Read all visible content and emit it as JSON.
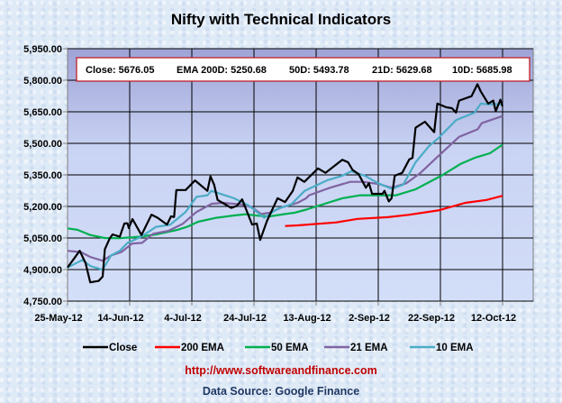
{
  "chart_data": {
    "type": "line",
    "title": "Nifty with Technical Indicators",
    "xlabel": "",
    "ylabel": "",
    "x_units": "calendar days since 25-May-12",
    "xlim": [
      0,
      150
    ],
    "ylim": [
      4750,
      5950
    ],
    "grid": true,
    "legend_position": "bottom",
    "x_tick_labels": [
      "25-May-12",
      "14-Jun-12",
      "4-Jul-12",
      "24-Jul-12",
      "13-Aug-12",
      "2-Sep-12",
      "22-Sep-12",
      "12-Oct-12"
    ],
    "x_tick_days": [
      0,
      20,
      40,
      60,
      80,
      100,
      120,
      140
    ],
    "y_ticks": [
      4750,
      4900,
      5050,
      5200,
      5350,
      5500,
      5650,
      5800,
      5950
    ],
    "y_tick_labels": [
      "4,750.00",
      "4,900.00",
      "5,050.00",
      "5,200.00",
      "5,350.00",
      "5,500.00",
      "5,650.00",
      "5,800.00",
      "5,950.00"
    ],
    "series": [
      {
        "name": "Close",
        "color": "#000000",
        "points": [
          [
            0,
            4910
          ],
          [
            3.9,
            4989
          ],
          [
            5.8,
            4931
          ],
          [
            7.3,
            4839
          ],
          [
            10,
            4846
          ],
          [
            11.3,
            4867
          ],
          [
            12,
            4996
          ],
          [
            13.5,
            5046
          ],
          [
            14.5,
            5067
          ],
          [
            16.8,
            5056
          ],
          [
            18.3,
            5119
          ],
          [
            19.3,
            5120
          ],
          [
            19.7,
            5097
          ],
          [
            20.9,
            5140
          ],
          [
            23.8,
            5064
          ],
          [
            27,
            5161
          ],
          [
            29,
            5146
          ],
          [
            32,
            5114
          ],
          [
            33.3,
            5153
          ],
          [
            34.3,
            5150
          ],
          [
            35,
            5278
          ],
          [
            38,
            5278
          ],
          [
            41,
            5324
          ],
          [
            45,
            5274
          ],
          [
            46,
            5343
          ],
          [
            47.2,
            5303
          ],
          [
            48.3,
            5231
          ],
          [
            52.7,
            5193
          ],
          [
            54.5,
            5203
          ],
          [
            56.2,
            5234
          ],
          [
            59.4,
            5114
          ],
          [
            60.9,
            5119
          ],
          [
            62,
            5041
          ],
          [
            64.2,
            5132
          ],
          [
            67.6,
            5239
          ],
          [
            70,
            5221
          ],
          [
            72.5,
            5274
          ],
          [
            74,
            5338
          ],
          [
            75.8,
            5321
          ],
          [
            76.2,
            5317
          ],
          [
            80.6,
            5381
          ],
          [
            83,
            5360
          ],
          [
            88.4,
            5422
          ],
          [
            90.3,
            5410
          ],
          [
            91.7,
            5374
          ],
          [
            93.7,
            5353
          ],
          [
            96,
            5289
          ],
          [
            97,
            5310
          ],
          [
            98,
            5260
          ],
          [
            101.4,
            5260
          ],
          [
            102,
            5274
          ],
          [
            103.4,
            5224
          ],
          [
            104.3,
            5239
          ],
          [
            105.3,
            5346
          ],
          [
            107.7,
            5360
          ],
          [
            110,
            5424
          ],
          [
            111,
            5431
          ],
          [
            112,
            5574
          ],
          [
            115,
            5603
          ],
          [
            118,
            5553
          ],
          [
            119,
            5689
          ],
          [
            122,
            5671
          ],
          [
            123.7,
            5667
          ],
          [
            125,
            5646
          ],
          [
            126,
            5703
          ],
          [
            130,
            5724
          ],
          [
            131.9,
            5781
          ],
          [
            133,
            5746
          ],
          [
            135.4,
            5689
          ],
          [
            137,
            5703
          ],
          [
            137.8,
            5653
          ],
          [
            139.3,
            5707
          ],
          [
            140,
            5676.05
          ]
        ]
      },
      {
        "name": "200 EMA",
        "color": "#ff0000",
        "points": [
          [
            70,
            5107
          ],
          [
            74,
            5110
          ],
          [
            86.5,
            5124
          ],
          [
            93.3,
            5141
          ],
          [
            103,
            5149
          ],
          [
            109.7,
            5160
          ],
          [
            119.3,
            5181
          ],
          [
            128,
            5217
          ],
          [
            134.8,
            5231
          ],
          [
            140,
            5250.68
          ]
        ]
      },
      {
        "name": "50 EMA",
        "color": "#00b050",
        "points": [
          [
            0,
            5096
          ],
          [
            3.2,
            5089
          ],
          [
            7.3,
            5064
          ],
          [
            12,
            5050
          ],
          [
            16.8,
            5049
          ],
          [
            23,
            5056
          ],
          [
            28.5,
            5067
          ],
          [
            35.4,
            5089
          ],
          [
            38.5,
            5103
          ],
          [
            42,
            5127
          ],
          [
            47.8,
            5146
          ],
          [
            53.6,
            5157
          ],
          [
            57.4,
            5163
          ],
          [
            61.3,
            5156
          ],
          [
            65,
            5153
          ],
          [
            70,
            5164
          ],
          [
            73,
            5170
          ],
          [
            76.8,
            5185
          ],
          [
            80,
            5200
          ],
          [
            88.4,
            5239
          ],
          [
            94.2,
            5253
          ],
          [
            100,
            5253
          ],
          [
            105.8,
            5253
          ],
          [
            111.9,
            5281
          ],
          [
            120.3,
            5346
          ],
          [
            126.6,
            5403
          ],
          [
            131,
            5431
          ],
          [
            135.9,
            5453
          ],
          [
            140,
            5493.78
          ]
        ]
      },
      {
        "name": "21 EMA",
        "color": "#8064a2",
        "points": [
          [
            0,
            4989
          ],
          [
            4.3,
            4983
          ],
          [
            7.3,
            4960
          ],
          [
            11.3,
            4942
          ],
          [
            14,
            4967
          ],
          [
            17.4,
            4984
          ],
          [
            20.8,
            5024
          ],
          [
            24,
            5027
          ],
          [
            27.5,
            5070
          ],
          [
            32.4,
            5084
          ],
          [
            37,
            5117
          ],
          [
            41.5,
            5174
          ],
          [
            46.4,
            5213
          ],
          [
            50,
            5217
          ],
          [
            55.8,
            5210
          ],
          [
            59.4,
            5196
          ],
          [
            62.3,
            5164
          ],
          [
            65,
            5170
          ],
          [
            69,
            5196
          ],
          [
            74,
            5217
          ],
          [
            76.8,
            5239
          ],
          [
            77.7,
            5253
          ],
          [
            84.5,
            5289
          ],
          [
            91,
            5317
          ],
          [
            95,
            5317
          ],
          [
            100,
            5307
          ],
          [
            104.3,
            5289
          ],
          [
            109,
            5310
          ],
          [
            113.6,
            5360
          ],
          [
            119.3,
            5439
          ],
          [
            126,
            5531
          ],
          [
            132,
            5567
          ],
          [
            133.3,
            5596
          ],
          [
            140,
            5629.68
          ]
        ]
      },
      {
        "name": "10 EMA",
        "color": "#4bacc6",
        "points": [
          [
            0,
            4910
          ],
          [
            4.8,
            4946
          ],
          [
            7.3,
            4917
          ],
          [
            11.3,
            4899
          ],
          [
            14,
            4967
          ],
          [
            16.8,
            4989
          ],
          [
            19.3,
            5027
          ],
          [
            23.7,
            5056
          ],
          [
            28.5,
            5103
          ],
          [
            33,
            5113
          ],
          [
            38,
            5174
          ],
          [
            41.5,
            5246
          ],
          [
            45,
            5253
          ],
          [
            46.3,
            5274
          ],
          [
            53.6,
            5239
          ],
          [
            58.5,
            5203
          ],
          [
            63.3,
            5146
          ],
          [
            67.6,
            5189
          ],
          [
            72,
            5210
          ],
          [
            76.3,
            5274
          ],
          [
            77.7,
            5284
          ],
          [
            83.5,
            5324
          ],
          [
            88.4,
            5346
          ],
          [
            91.3,
            5367
          ],
          [
            95.7,
            5346
          ],
          [
            100,
            5310
          ],
          [
            104.3,
            5284
          ],
          [
            108,
            5303
          ],
          [
            112,
            5410
          ],
          [
            116.4,
            5488
          ],
          [
            119.3,
            5524
          ],
          [
            125,
            5610
          ],
          [
            131,
            5646
          ],
          [
            133,
            5689
          ],
          [
            135,
            5686
          ],
          [
            140,
            5685.98
          ]
        ]
      }
    ],
    "info_box": {
      "close": "Close: 5676.05",
      "ema_200": "EMA  200D: 5250.68",
      "ema_50": "50D: 5493.78",
      "ema_21": "21D: 5629.68",
      "ema_10": "10D: 5685.98"
    }
  },
  "footer": {
    "url": "http://www.softwareandfinance.com",
    "source": "Data Source: Google Finance"
  }
}
